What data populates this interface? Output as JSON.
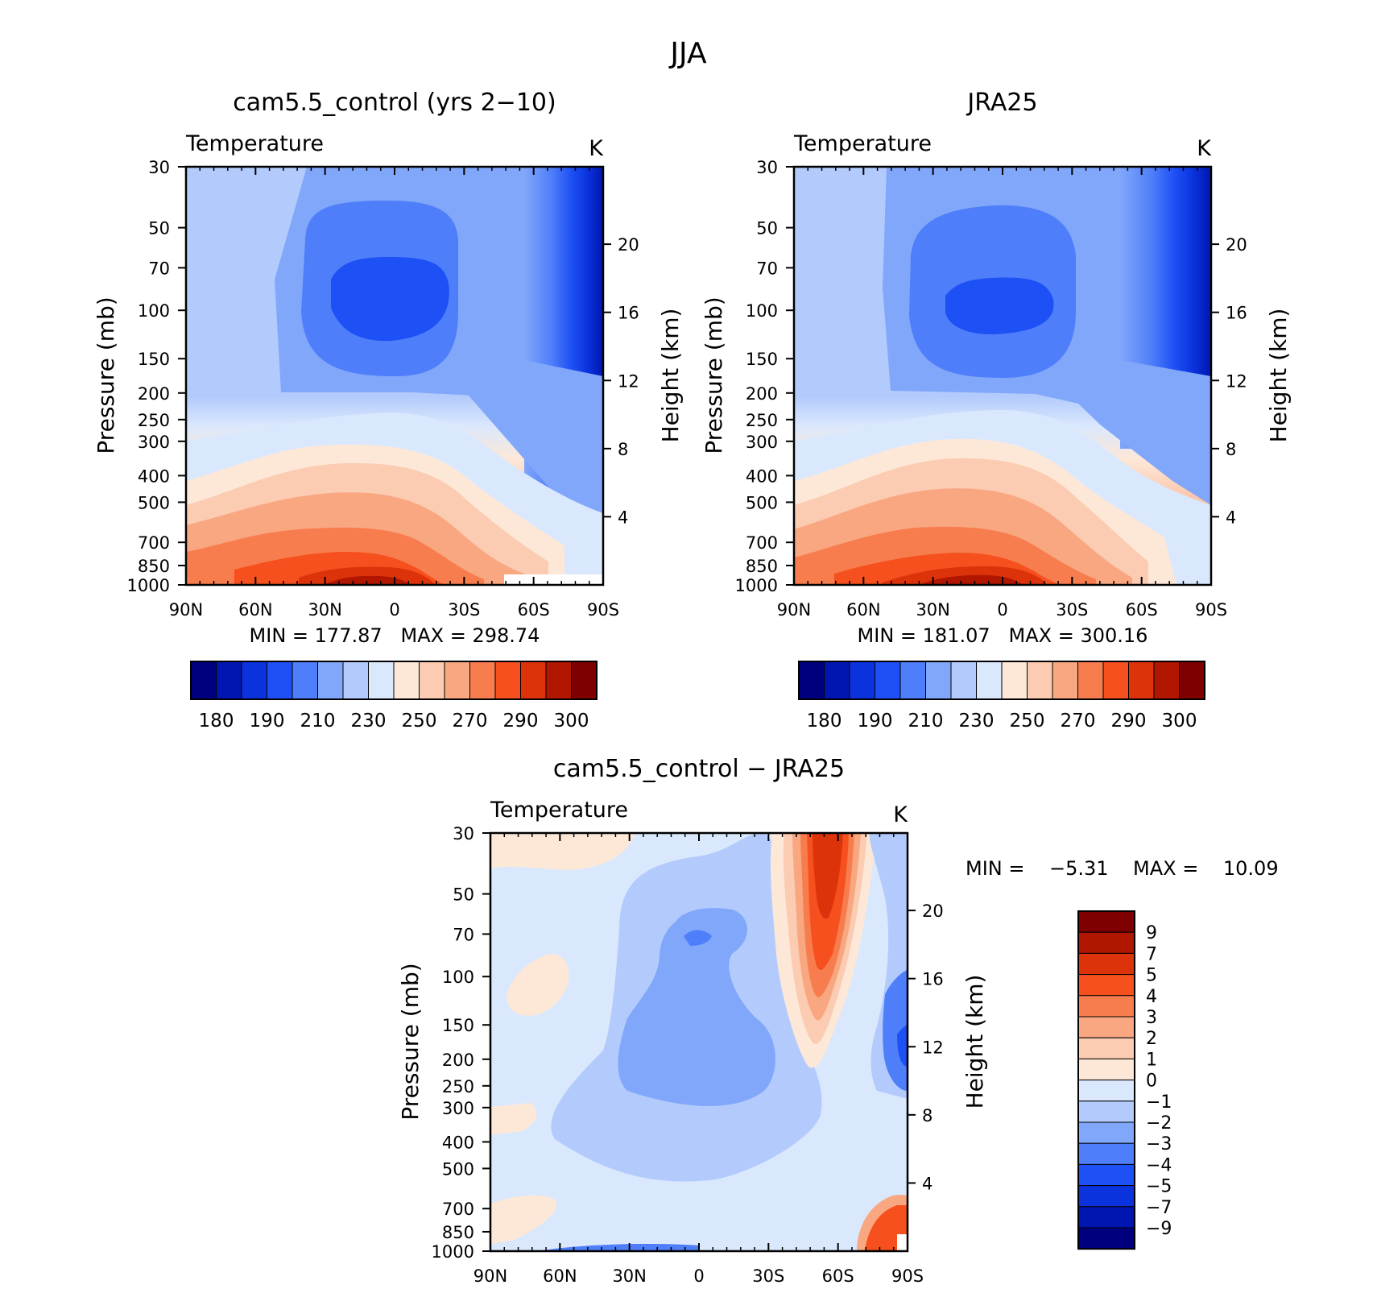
{
  "figure_title": "JJA",
  "colorscale_full": [
    "#00007f",
    "#0016b0",
    "#0b33dd",
    "#1d50f5",
    "#4e7ef9",
    "#81a7fb",
    "#b3cbfc",
    "#dae8fd",
    "#fde8d8",
    "#fbcbb2",
    "#f9a781",
    "#f87d4e",
    "#f5501d",
    "#dd330b",
    "#b01600",
    "#7f0000"
  ],
  "colorscale_diff": [
    "#00007f",
    "#0016b0",
    "#0b33dd",
    "#1d50f5",
    "#4e7ef9",
    "#81a7fb",
    "#b3cbfc",
    "#dae8fd",
    "#fde8d8",
    "#fbcbb2",
    "#f9a781",
    "#f87d4e",
    "#f5501d",
    "#dd330b",
    "#b01600",
    "#7f0000"
  ],
  "chart_data": [
    {
      "type": "heatmap",
      "title": "cam5.5_control (yrs 2−10)",
      "variable": "Temperature",
      "units": "K",
      "xlabel": "",
      "ylabel": "Pressure (mb)",
      "ylabel_right": "Height (km)",
      "x_ticks": [
        "90N",
        "60N",
        "30N",
        "0",
        "30S",
        "60S",
        "90S"
      ],
      "y_ticks": [
        "30",
        "50",
        "70",
        "100",
        "150",
        "200",
        "250",
        "300",
        "400",
        "500",
        "700",
        "850",
        "1000"
      ],
      "y_ticks_right": [
        "20",
        "16",
        "12",
        "8",
        "4"
      ],
      "y_log": true,
      "ylim": [
        1000,
        30
      ],
      "min": "177.87",
      "max": "298.74",
      "stats_label": "MIN = 177.87   MAX = 298.74",
      "colorbar_labels": [
        "180",
        "190",
        "210",
        "230",
        "250",
        "270",
        "290",
        "300"
      ]
    },
    {
      "type": "heatmap",
      "title": "JRA25",
      "variable": "Temperature",
      "units": "K",
      "xlabel": "",
      "ylabel": "Pressure (mb)",
      "ylabel_right": "Height (km)",
      "x_ticks": [
        "90N",
        "60N",
        "30N",
        "0",
        "30S",
        "60S",
        "90S"
      ],
      "y_ticks": [
        "30",
        "50",
        "70",
        "100",
        "150",
        "200",
        "250",
        "300",
        "400",
        "500",
        "700",
        "850",
        "1000"
      ],
      "y_ticks_right": [
        "20",
        "16",
        "12",
        "8",
        "4"
      ],
      "y_log": true,
      "ylim": [
        1000,
        30
      ],
      "min": "181.07",
      "max": "300.16",
      "stats_label": "MIN = 181.07   MAX = 300.16",
      "colorbar_labels": [
        "180",
        "190",
        "210",
        "230",
        "250",
        "270",
        "290",
        "300"
      ]
    },
    {
      "type": "heatmap",
      "title": "cam5.5_control − JRA25",
      "variable": "Temperature",
      "units": "K",
      "xlabel": "",
      "ylabel": "Pressure (mb)",
      "ylabel_right": "Height (km)",
      "x_ticks": [
        "90N",
        "60N",
        "30N",
        "0",
        "30S",
        "60S",
        "90S"
      ],
      "y_ticks": [
        "30",
        "50",
        "70",
        "100",
        "150",
        "200",
        "250",
        "300",
        "400",
        "500",
        "700",
        "850",
        "1000"
      ],
      "y_ticks_right": [
        "20",
        "16",
        "12",
        "8",
        "4"
      ],
      "y_log": true,
      "ylim": [
        1000,
        30
      ],
      "min": "−5.31",
      "max": "10.09",
      "stats_label": "MIN =    −5.31    MAX =    10.09",
      "colorbar_labels": [
        "9",
        "7",
        "5",
        "4",
        "3",
        "2",
        "1",
        "0",
        "−1",
        "−2",
        "−3",
        "−4",
        "−5",
        "−7",
        "−9"
      ]
    }
  ]
}
